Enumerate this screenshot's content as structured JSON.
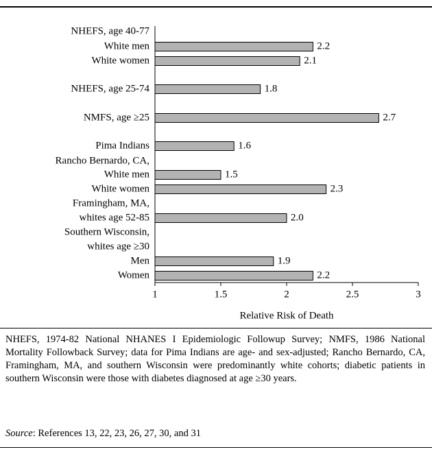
{
  "chart_data": {
    "type": "barh",
    "categories": [
      "NHEFS, age 40-77",
      "White men",
      "White women",
      "NHEFS, age 25-74",
      "NMFS, age ≥25",
      "Pima Indians",
      "Rancho Bernardo, CA,",
      "White men",
      "White women",
      "Framingham, MA,",
      "whites age 52-85",
      "Southern Wisconsin,",
      "whites age ≥30",
      "Men",
      "Women"
    ],
    "values": [
      null,
      2.2,
      2.1,
      1.8,
      2.7,
      1.6,
      null,
      1.5,
      2.3,
      null,
      2.0,
      null,
      null,
      1.9,
      2.2
    ],
    "value_labels": [
      null,
      "2.2",
      "2.1",
      "1.8",
      "2.7",
      "1.6",
      null,
      "1.5",
      "2.3",
      null,
      "2.0",
      null,
      null,
      "1.9",
      "2.2"
    ],
    "color": "#b3b3b3",
    "xlim": [
      1,
      3
    ],
    "xticks": [
      1,
      1.5,
      2,
      2.5,
      3
    ],
    "xlabel": "Relative Risk of Death"
  },
  "notes": "NHEFS, 1974-82 National NHANES I Epidemiologic Followup Survey; NMFS, 1986 National Mortality Followback Survey; data for Pima Indians are age- and sex-adjusted; Rancho Bernardo, CA, Framingham, MA, and southern Wisconsin were predominantly white cohorts; diabetic patients in southern Wisconsin were those with diabetes diagnosed at age ≥30 years.",
  "source_label": "Source",
  "source": ": References 13, 22, 23, 26, 27, 30, and 31"
}
